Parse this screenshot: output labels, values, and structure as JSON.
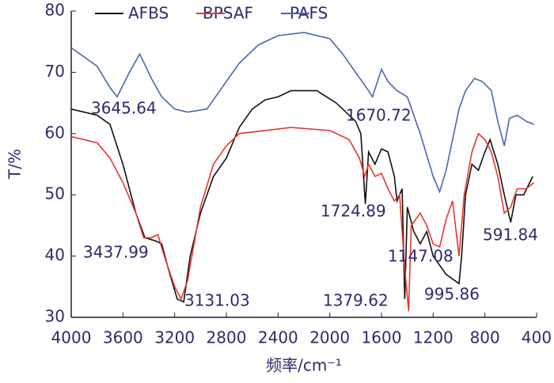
{
  "chart_data": {
    "type": "line",
    "xlabel": "频率/cm⁻¹",
    "ylabel": "T/%",
    "xlim": [
      4000,
      400
    ],
    "ylim": [
      30,
      80
    ],
    "xticks": [
      4000,
      3600,
      3200,
      2800,
      2400,
      2000,
      1600,
      1200,
      800,
      400
    ],
    "yticks": [
      30,
      40,
      50,
      60,
      70,
      80
    ],
    "series": [
      {
        "name": "AFBS",
        "color": "#111111",
        "x": [
          4000,
          3800,
          3700,
          3600,
          3500,
          3430,
          3350,
          3300,
          3250,
          3180,
          3130,
          3080,
          3000,
          2900,
          2800,
          2700,
          2600,
          2500,
          2400,
          2300,
          2100,
          1950,
          1800,
          1760,
          1725,
          1700,
          1650,
          1600,
          1550,
          1500,
          1480,
          1440,
          1420,
          1400,
          1350,
          1300,
          1250,
          1200,
          1100,
          1000,
          980,
          950,
          900,
          850,
          800,
          760,
          700,
          650,
          600,
          560,
          500,
          430
        ],
        "values": [
          64,
          63,
          61.5,
          55,
          47,
          43,
          42.5,
          42,
          38,
          33,
          32.5,
          40,
          47,
          53,
          56,
          61,
          64,
          65.5,
          66,
          67,
          67,
          65,
          62,
          60,
          48.5,
          57,
          55,
          57.5,
          57,
          53,
          49,
          51,
          33,
          48,
          44,
          42,
          44,
          40,
          37,
          35.5,
          40,
          50,
          55,
          54,
          57,
          59,
          55,
          50,
          45.5,
          50,
          50,
          53
        ]
      },
      {
        "name": "BPSAF",
        "color": "#e8372d",
        "x": [
          4000,
          3800,
          3700,
          3600,
          3500,
          3440,
          3380,
          3330,
          3280,
          3200,
          3150,
          3100,
          3000,
          2900,
          2800,
          2700,
          2500,
          2300,
          2000,
          1850,
          1770,
          1730,
          1700,
          1650,
          1600,
          1550,
          1500,
          1460,
          1420,
          1390,
          1370,
          1300,
          1250,
          1200,
          1150,
          1100,
          1050,
          1000,
          960,
          900,
          850,
          800,
          750,
          700,
          650,
          600,
          550,
          480,
          420
        ],
        "values": [
          59.5,
          58.5,
          56,
          52,
          47,
          43,
          43,
          43.5,
          40,
          35,
          33,
          36,
          48,
          55,
          58,
          60,
          60.5,
          61,
          60.5,
          59,
          56,
          53,
          55,
          53,
          53.5,
          51,
          49,
          50,
          38,
          31,
          45,
          47,
          45,
          42,
          41.5,
          46,
          49,
          40,
          50,
          57,
          60,
          59,
          57,
          53,
          47,
          48,
          51,
          51,
          52
        ]
      },
      {
        "name": "PAFS",
        "color": "#4a64b4",
        "x": [
          4000,
          3800,
          3700,
          3645,
          3550,
          3470,
          3380,
          3300,
          3200,
          3100,
          2950,
          2850,
          2700,
          2550,
          2400,
          2200,
          2000,
          1900,
          1800,
          1700,
          1670,
          1600,
          1550,
          1480,
          1400,
          1300,
          1200,
          1150,
          1100,
          1050,
          1000,
          950,
          880,
          820,
          750,
          700,
          650,
          610,
          550,
          480,
          420
        ],
        "values": [
          74,
          71,
          67.5,
          66,
          70,
          73,
          69,
          66,
          64,
          63.5,
          64,
          67,
          71.5,
          74.5,
          76,
          76.5,
          75.5,
          73,
          70,
          67,
          66,
          70.5,
          68.5,
          67,
          66,
          60,
          53,
          50.5,
          54,
          59,
          64,
          67,
          69,
          68.5,
          67,
          62,
          58,
          62.5,
          63,
          62,
          61.5
        ]
      }
    ],
    "annotations": [
      "3645.64",
      "1670.72",
      "1724.89",
      "3437.99",
      "1147.08",
      "591.84",
      "3131.03",
      "1379.62",
      "995.86"
    ]
  }
}
